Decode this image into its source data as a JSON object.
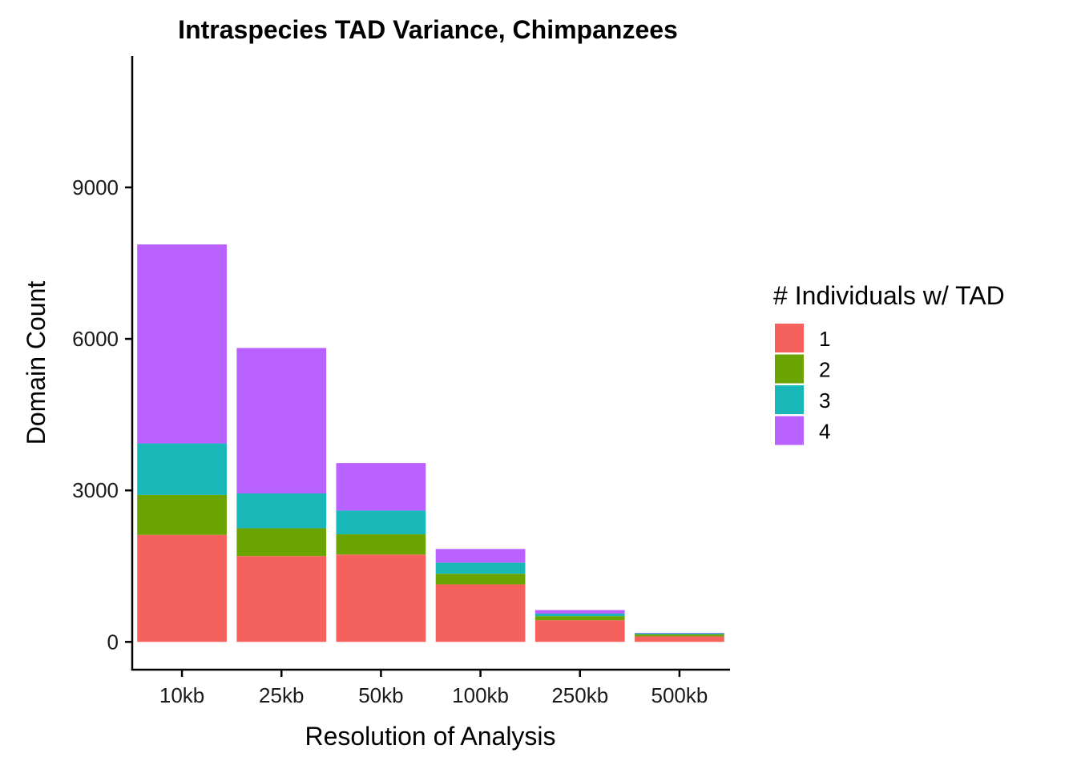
{
  "colors": {
    "1": "#F5615C",
    "2": "#6BA400",
    "3": "#1AB7B8",
    "4": "#B962FF"
  },
  "chart_data": {
    "type": "bar",
    "stacked": true,
    "title": "Intraspecies TAD Variance, Chimpanzees",
    "xlabel": "Resolution of Analysis",
    "ylabel": "Domain Count",
    "categories": [
      "10kb",
      "25kb",
      "50kb",
      "100kb",
      "250kb",
      "500kb"
    ],
    "yticks": [
      0,
      3000,
      6000,
      9000
    ],
    "ylim": [
      -550,
      11600
    ],
    "legend_title": "# Individuals w/ TAD",
    "legend_position": "right",
    "grid": false,
    "series": [
      {
        "name": "1",
        "values": [
          2120,
          1700,
          1730,
          1140,
          430,
          110
        ]
      },
      {
        "name": "2",
        "values": [
          790,
          550,
          400,
          210,
          80,
          40
        ]
      },
      {
        "name": "3",
        "values": [
          1020,
          690,
          470,
          220,
          50,
          20
        ]
      },
      {
        "name": "4",
        "values": [
          3940,
          2880,
          940,
          270,
          70,
          10
        ]
      }
    ]
  }
}
